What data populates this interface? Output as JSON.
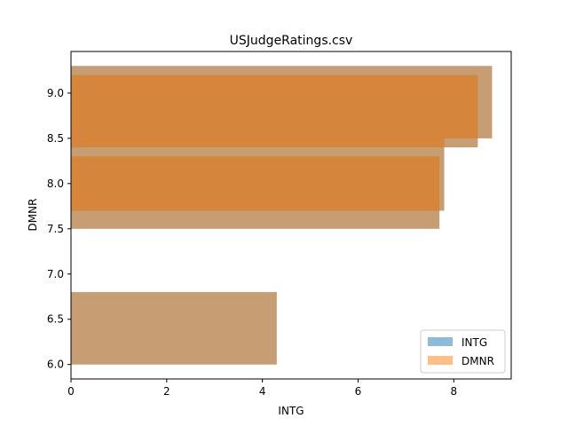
{
  "chart_data": {
    "type": "bar",
    "orientation": "horizontal",
    "title": "USJudgeRatings.csv",
    "xlabel": "INTG",
    "ylabel": "DMNR",
    "xlim": [
      0,
      9.2
    ],
    "ylim": [
      5.84,
      9.46
    ],
    "x_ticks": [
      0,
      2,
      4,
      6,
      8
    ],
    "y_ticks": [
      6.0,
      6.5,
      7.0,
      7.5,
      8.0,
      8.5,
      9.0
    ],
    "series": [
      {
        "name": "INTG",
        "color": "#1f77b4",
        "alpha": 0.5,
        "bars": [
          {
            "y_from": 6.0,
            "y_to": 6.8,
            "value": 4.3
          },
          {
            "y_from": 7.5,
            "y_to": 8.3,
            "value": 7.7
          },
          {
            "y_from": 7.7,
            "y_to": 8.5,
            "value": 7.8
          },
          {
            "y_from": 8.4,
            "y_to": 9.2,
            "value": 8.5
          },
          {
            "y_from": 8.5,
            "y_to": 9.3,
            "value": 8.8
          }
        ]
      },
      {
        "name": "DMNR",
        "color": "#ff7f0e",
        "alpha": 0.5,
        "bars": [
          {
            "y_from": 6.0,
            "y_to": 6.8,
            "value": 4.3
          },
          {
            "y_from": 7.5,
            "y_to": 8.3,
            "value": 7.7
          },
          {
            "y_from": 7.7,
            "y_to": 8.5,
            "value": 7.8
          },
          {
            "y_from": 8.4,
            "y_to": 9.2,
            "value": 8.5
          },
          {
            "y_from": 8.5,
            "y_to": 9.3,
            "value": 8.8
          }
        ]
      }
    ],
    "legend_position": "lower right",
    "grid": false
  }
}
